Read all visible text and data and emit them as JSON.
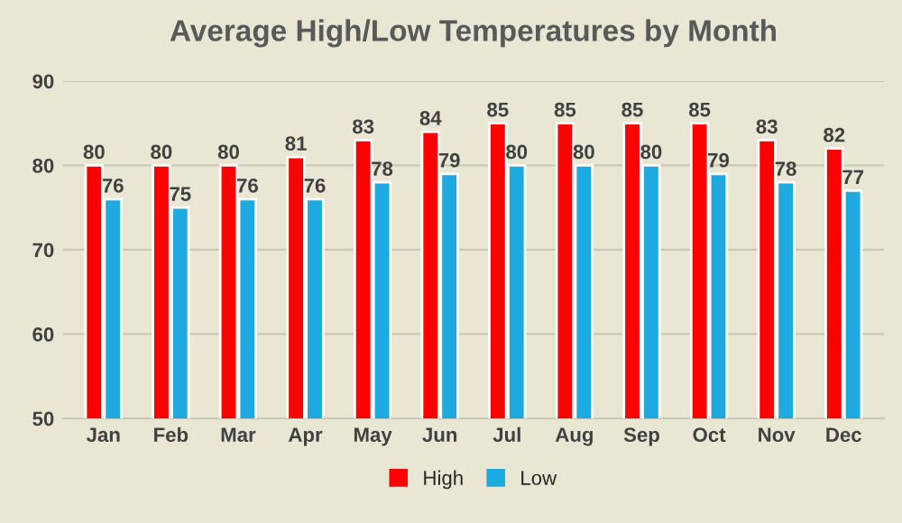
{
  "chart_data": {
    "type": "bar",
    "title": "Average High/Low Temperatures by Month",
    "categories": [
      "Jan",
      "Feb",
      "Mar",
      "Apr",
      "May",
      "Jun",
      "Jul",
      "Aug",
      "Sep",
      "Oct",
      "Nov",
      "Dec"
    ],
    "series": [
      {
        "name": "High",
        "color": "#ff0000",
        "values": [
          80,
          80,
          80,
          81,
          83,
          84,
          85,
          85,
          85,
          85,
          83,
          82
        ]
      },
      {
        "name": "Low",
        "color": "#1ea9e1",
        "values": [
          76,
          75,
          76,
          76,
          78,
          79,
          80,
          80,
          80,
          79,
          78,
          77
        ]
      }
    ],
    "ylim": [
      50,
      90
    ],
    "yticks": [
      50,
      60,
      70,
      80,
      90
    ],
    "grid": "y",
    "legend": "bottom",
    "data_labels": true
  }
}
